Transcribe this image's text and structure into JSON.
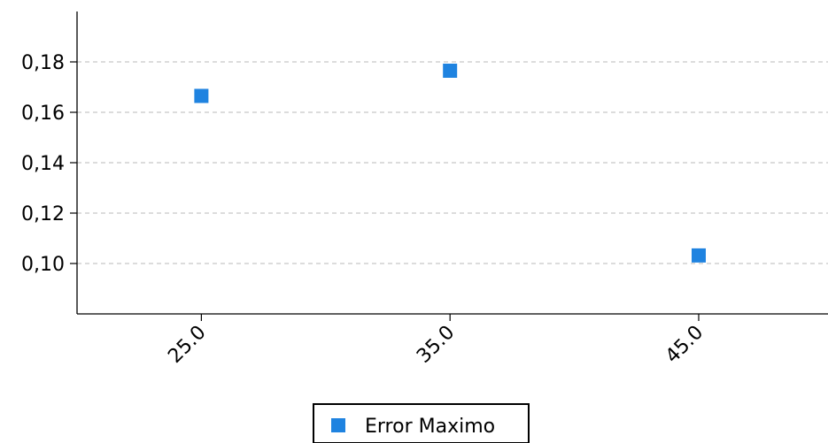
{
  "chart_data": {
    "type": "scatter",
    "x_tick_labels": [
      "25.0",
      "35.0",
      "45.0"
    ],
    "y_tick_labels": [
      "0,10",
      "0,12",
      "0,14",
      "0,16",
      "0,18"
    ],
    "series": [
      {
        "name": "Error Maximo",
        "color": "#1f83e0",
        "marker": "square",
        "points": [
          {
            "x": 25.0,
            "y": 0.1665
          },
          {
            "x": 35.0,
            "y": 0.1765
          },
          {
            "x": 45.0,
            "y": 0.1032
          }
        ]
      }
    ],
    "xlim": [
      20.0,
      50.2
    ],
    "ylim": [
      0.08,
      0.2
    ],
    "x_tick_rotation_deg": 45,
    "grid": {
      "axis": "y",
      "style": "dashed",
      "color": "#c8c8c8"
    },
    "legend": {
      "position": "bottom-center",
      "entries": [
        "Error Maximo"
      ]
    }
  }
}
